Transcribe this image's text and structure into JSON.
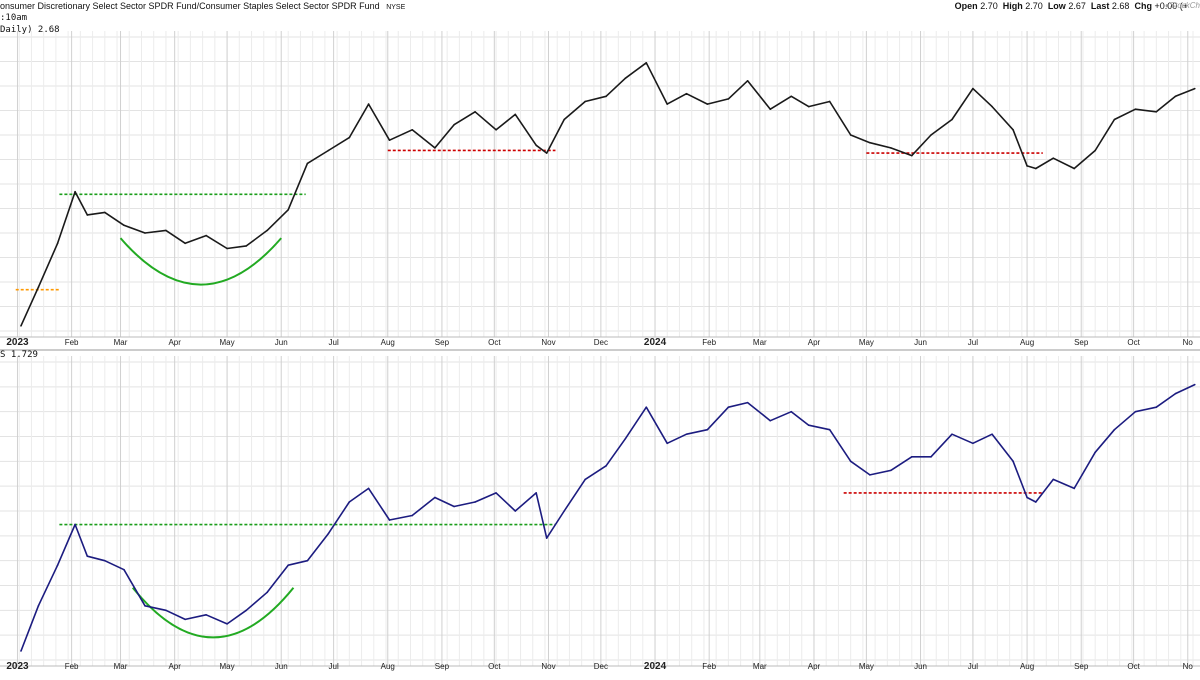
{
  "header": {
    "title": "onsumer Discretionary Select Sector SPDR Fund/Consumer Staples Select Sector SPDR Fund",
    "exchange": "NYSE",
    "stats": [
      {
        "label": "Open",
        "value": "2.70"
      },
      {
        "label": "High",
        "value": "2.70"
      },
      {
        "label": "Low",
        "value": "2.67"
      },
      {
        "label": "Last",
        "value": "2.68"
      },
      {
        "label": "Chg",
        "value": "+0.00 (+"
      }
    ],
    "logo": "StockCh",
    "time": ":10am"
  },
  "chart_data": [
    {
      "type": "line",
      "legend": "Daily) 2.68",
      "color": "#1a1a1a",
      "grid": true,
      "x_ticks": [
        "2023",
        "Feb",
        "Mar",
        "Apr",
        "May",
        "Jun",
        "Jul",
        "Aug",
        "Sep",
        "Oct",
        "Nov",
        "Dec",
        "2024",
        "Feb",
        "Mar",
        "Apr",
        "May",
        "Jun",
        "Jul",
        "Aug",
        "Sep",
        "Oct",
        "No"
      ],
      "bold_ticks": [
        "2023",
        "2024"
      ],
      "x": [
        "2023-01-03",
        "2023-01-13",
        "2023-01-24",
        "2023-02-03",
        "2023-02-10",
        "2023-02-20",
        "2023-03-03",
        "2023-03-15",
        "2023-03-27",
        "2023-04-07",
        "2023-04-19",
        "2023-05-01",
        "2023-05-12",
        "2023-05-24",
        "2023-06-05",
        "2023-06-16",
        "2023-06-28",
        "2023-07-10",
        "2023-07-21",
        "2023-08-02",
        "2023-08-15",
        "2023-08-28",
        "2023-09-08",
        "2023-09-20",
        "2023-10-02",
        "2023-10-13",
        "2023-10-25",
        "2023-10-31",
        "2023-11-10",
        "2023-11-22",
        "2023-12-04",
        "2023-12-15",
        "2023-12-27",
        "2024-01-08",
        "2024-01-19",
        "2024-01-31",
        "2024-02-12",
        "2024-02-23",
        "2024-03-07",
        "2024-03-19",
        "2024-03-29",
        "2024-04-10",
        "2024-04-22",
        "2024-05-03",
        "2024-05-15",
        "2024-05-27",
        "2024-06-07",
        "2024-06-19",
        "2024-07-01",
        "2024-07-12",
        "2024-07-24",
        "2024-08-01",
        "2024-08-06",
        "2024-08-16",
        "2024-08-28",
        "2024-09-09",
        "2024-09-20",
        "2024-10-02",
        "2024-10-14",
        "2024-10-25",
        "2024-11-05"
      ],
      "y": [
        1.9,
        2.05,
        2.22,
        2.42,
        2.33,
        2.34,
        2.29,
        2.26,
        2.27,
        2.22,
        2.25,
        2.2,
        2.21,
        2.27,
        2.35,
        2.53,
        2.58,
        2.63,
        2.76,
        2.62,
        2.66,
        2.59,
        2.68,
        2.73,
        2.66,
        2.72,
        2.6,
        2.57,
        2.7,
        2.77,
        2.79,
        2.86,
        2.92,
        2.76,
        2.8,
        2.76,
        2.78,
        2.85,
        2.74,
        2.79,
        2.75,
        2.77,
        2.64,
        2.61,
        2.59,
        2.56,
        2.64,
        2.7,
        2.82,
        2.75,
        2.66,
        2.52,
        2.51,
        2.55,
        2.51,
        2.58,
        2.7,
        2.74,
        2.73,
        2.79,
        2.82
      ],
      "ylim": [
        1.88,
        3.02
      ],
      "guides": [
        {
          "color": "#ff9900",
          "x1": "2022-12-31",
          "x2": "2023-01-25",
          "y": 2.04
        },
        {
          "color": "#1a9e1a",
          "x1": "2023-01-25",
          "x2": "2023-06-15",
          "y": 2.41
        },
        {
          "color": "#cc0000",
          "x1": "2023-08-01",
          "x2": "2023-11-05",
          "y": 2.58
        },
        {
          "color": "#cc0000",
          "x1": "2024-05-01",
          "x2": "2024-08-10",
          "y": 2.57
        }
      ],
      "arcs": [
        {
          "color": "#22aa22",
          "x1": "2023-03-01",
          "x2": "2023-06-01",
          "y_ends": 2.24,
          "y_low": 2.06
        }
      ]
    },
    {
      "type": "line",
      "legend": "S 1.729",
      "color": "#1c1c80",
      "grid": true,
      "x_ticks": [
        "2023",
        "Feb",
        "Mar",
        "Apr",
        "May",
        "Jun",
        "Jul",
        "Aug",
        "Sep",
        "Oct",
        "Nov",
        "Dec",
        "2024",
        "Feb",
        "Mar",
        "Apr",
        "May",
        "Jun",
        "Jul",
        "Aug",
        "Sep",
        "Oct",
        "No"
      ],
      "bold_ticks": [
        "2023",
        "2024"
      ],
      "x": [
        "2023-01-03",
        "2023-01-13",
        "2023-01-24",
        "2023-02-03",
        "2023-02-10",
        "2023-02-20",
        "2023-03-03",
        "2023-03-15",
        "2023-03-27",
        "2023-04-07",
        "2023-04-19",
        "2023-05-01",
        "2023-05-12",
        "2023-05-24",
        "2023-06-05",
        "2023-06-16",
        "2023-06-28",
        "2023-07-10",
        "2023-07-21",
        "2023-08-02",
        "2023-08-15",
        "2023-08-28",
        "2023-09-08",
        "2023-09-20",
        "2023-10-02",
        "2023-10-13",
        "2023-10-25",
        "2023-10-31",
        "2023-11-10",
        "2023-11-22",
        "2023-12-04",
        "2023-12-15",
        "2023-12-27",
        "2024-01-08",
        "2024-01-19",
        "2024-01-31",
        "2024-02-12",
        "2024-02-23",
        "2024-03-07",
        "2024-03-19",
        "2024-03-29",
        "2024-04-10",
        "2024-04-22",
        "2024-05-03",
        "2024-05-15",
        "2024-05-27",
        "2024-06-07",
        "2024-06-19",
        "2024-07-01",
        "2024-07-12",
        "2024-07-24",
        "2024-08-01",
        "2024-08-06",
        "2024-08-16",
        "2024-08-28",
        "2024-09-09",
        "2024-09-20",
        "2024-10-02",
        "2024-10-14",
        "2024-10-25",
        "2024-11-05"
      ],
      "y": [
        1.14,
        1.24,
        1.33,
        1.42,
        1.35,
        1.34,
        1.32,
        1.24,
        1.23,
        1.21,
        1.22,
        1.2,
        1.23,
        1.27,
        1.33,
        1.34,
        1.4,
        1.47,
        1.5,
        1.43,
        1.44,
        1.48,
        1.46,
        1.47,
        1.49,
        1.45,
        1.49,
        1.39,
        1.45,
        1.52,
        1.55,
        1.61,
        1.68,
        1.6,
        1.62,
        1.63,
        1.68,
        1.69,
        1.65,
        1.67,
        1.64,
        1.63,
        1.56,
        1.53,
        1.54,
        1.57,
        1.57,
        1.62,
        1.6,
        1.62,
        1.56,
        1.48,
        1.47,
        1.52,
        1.5,
        1.58,
        1.63,
        1.67,
        1.68,
        1.71,
        1.73
      ],
      "ylim": [
        1.12,
        1.78
      ],
      "guides": [
        {
          "color": "#1a9e1a",
          "x1": "2023-01-25",
          "x2": "2023-11-05",
          "y": 1.42
        },
        {
          "color": "#cc0000",
          "x1": "2024-04-18",
          "x2": "2024-08-10",
          "y": 1.49
        }
      ],
      "arcs": [
        {
          "color": "#22aa22",
          "x1": "2023-03-08",
          "x2": "2023-06-08",
          "y_ends": 1.28,
          "y_low": 1.17
        }
      ]
    }
  ]
}
